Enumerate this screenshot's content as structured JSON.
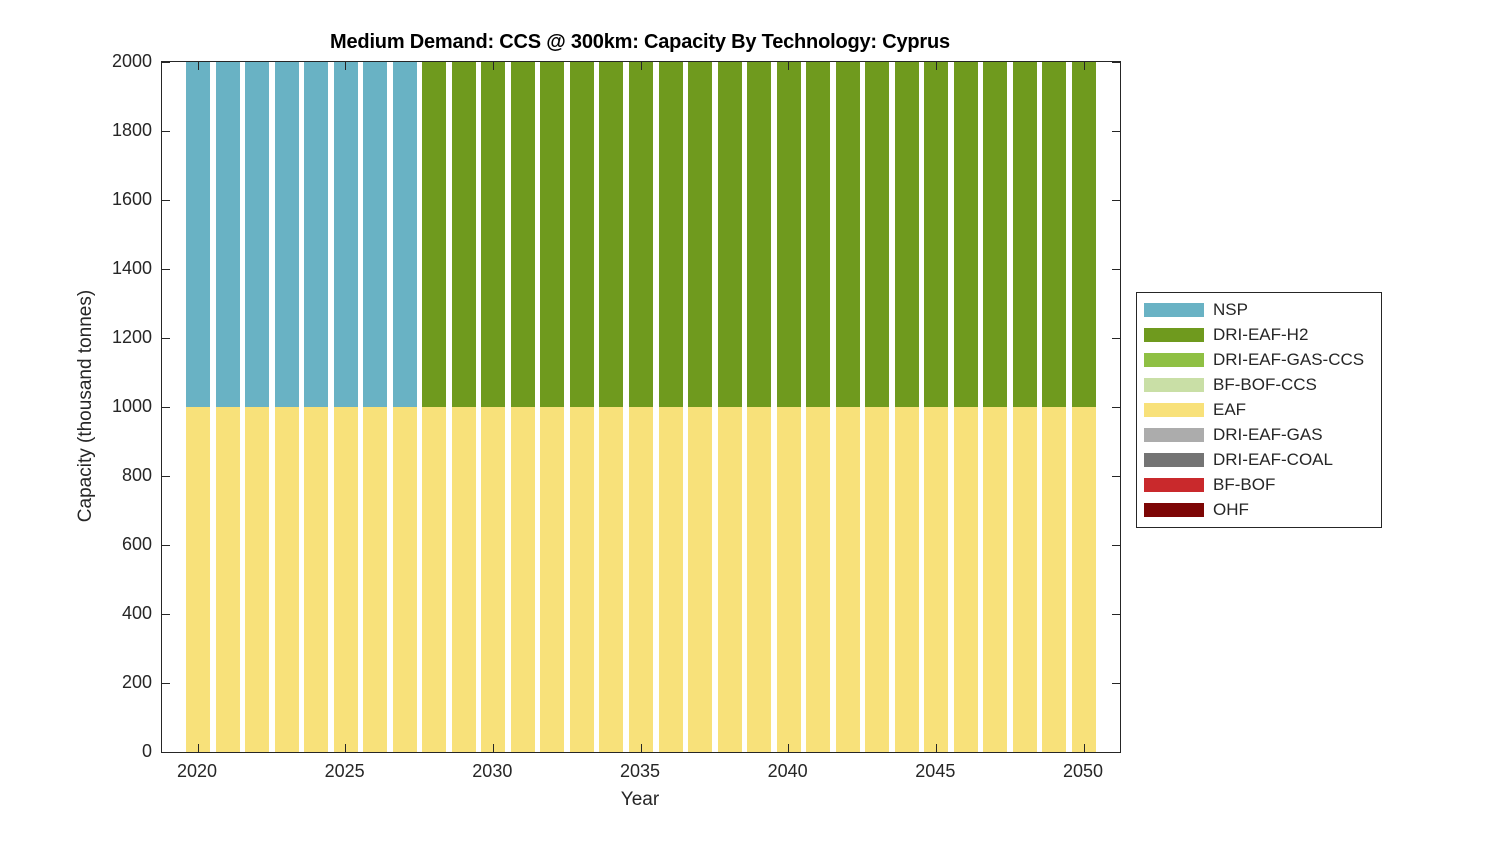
{
  "chart_data": {
    "type": "bar",
    "stacked": true,
    "title": "Medium Demand: CCS @ 300km: Capacity By Technology: Cyprus",
    "xlabel": "Year",
    "ylabel": "Capacity (thousand tonnes)",
    "ylim": [
      0,
      2000
    ],
    "yticks": [
      0,
      200,
      400,
      600,
      800,
      1000,
      1200,
      1400,
      1600,
      1800,
      2000
    ],
    "xticks": [
      2020,
      2025,
      2030,
      2035,
      2040,
      2045,
      2050
    ],
    "grid": false,
    "legend_position": "right-outside",
    "bar_width_fraction": 0.8,
    "x": [
      2020,
      2021,
      2022,
      2023,
      2024,
      2025,
      2026,
      2027,
      2028,
      2029,
      2030,
      2031,
      2032,
      2033,
      2034,
      2035,
      2036,
      2037,
      2038,
      2039,
      2040,
      2041,
      2042,
      2043,
      2044,
      2045,
      2046,
      2047,
      2048,
      2049,
      2050
    ],
    "stack_order": [
      "EAF",
      "NSP",
      "DRI-EAF-H2",
      "DRI-EAF-GAS-CCS",
      "BF-BOF-CCS",
      "DRI-EAF-GAS",
      "DRI-EAF-COAL",
      "BF-BOF",
      "OHF"
    ],
    "series": [
      {
        "name": "NSP",
        "color": "#69B2C4",
        "values": [
          1000,
          1000,
          1000,
          1000,
          1000,
          1000,
          1000,
          1000,
          0,
          0,
          0,
          0,
          0,
          0,
          0,
          0,
          0,
          0,
          0,
          0,
          0,
          0,
          0,
          0,
          0,
          0,
          0,
          0,
          0,
          0,
          0
        ]
      },
      {
        "name": "DRI-EAF-H2",
        "color": "#6F9A1E",
        "values": [
          0,
          0,
          0,
          0,
          0,
          0,
          0,
          0,
          1000,
          1000,
          1000,
          1000,
          1000,
          1000,
          1000,
          1000,
          1000,
          1000,
          1000,
          1000,
          1000,
          1000,
          1000,
          1000,
          1000,
          1000,
          1000,
          1000,
          1000,
          1000,
          1000
        ]
      },
      {
        "name": "DRI-EAF-GAS-CCS",
        "color": "#8FC044",
        "values": [
          0,
          0,
          0,
          0,
          0,
          0,
          0,
          0,
          0,
          0,
          0,
          0,
          0,
          0,
          0,
          0,
          0,
          0,
          0,
          0,
          0,
          0,
          0,
          0,
          0,
          0,
          0,
          0,
          0,
          0,
          0
        ]
      },
      {
        "name": "BF-BOF-CCS",
        "color": "#C9DFA6",
        "values": [
          0,
          0,
          0,
          0,
          0,
          0,
          0,
          0,
          0,
          0,
          0,
          0,
          0,
          0,
          0,
          0,
          0,
          0,
          0,
          0,
          0,
          0,
          0,
          0,
          0,
          0,
          0,
          0,
          0,
          0,
          0
        ]
      },
      {
        "name": "EAF",
        "color": "#F8E17A",
        "values": [
          1000,
          1000,
          1000,
          1000,
          1000,
          1000,
          1000,
          1000,
          1000,
          1000,
          1000,
          1000,
          1000,
          1000,
          1000,
          1000,
          1000,
          1000,
          1000,
          1000,
          1000,
          1000,
          1000,
          1000,
          1000,
          1000,
          1000,
          1000,
          1000,
          1000,
          1000
        ]
      },
      {
        "name": "DRI-EAF-GAS",
        "color": "#ACACAC",
        "values": [
          0,
          0,
          0,
          0,
          0,
          0,
          0,
          0,
          0,
          0,
          0,
          0,
          0,
          0,
          0,
          0,
          0,
          0,
          0,
          0,
          0,
          0,
          0,
          0,
          0,
          0,
          0,
          0,
          0,
          0,
          0
        ]
      },
      {
        "name": "DRI-EAF-COAL",
        "color": "#747474",
        "values": [
          0,
          0,
          0,
          0,
          0,
          0,
          0,
          0,
          0,
          0,
          0,
          0,
          0,
          0,
          0,
          0,
          0,
          0,
          0,
          0,
          0,
          0,
          0,
          0,
          0,
          0,
          0,
          0,
          0,
          0,
          0
        ]
      },
      {
        "name": "BF-BOF",
        "color": "#C9292C",
        "values": [
          0,
          0,
          0,
          0,
          0,
          0,
          0,
          0,
          0,
          0,
          0,
          0,
          0,
          0,
          0,
          0,
          0,
          0,
          0,
          0,
          0,
          0,
          0,
          0,
          0,
          0,
          0,
          0,
          0,
          0,
          0
        ]
      },
      {
        "name": "OHF",
        "color": "#7D0605",
        "values": [
          0,
          0,
          0,
          0,
          0,
          0,
          0,
          0,
          0,
          0,
          0,
          0,
          0,
          0,
          0,
          0,
          0,
          0,
          0,
          0,
          0,
          0,
          0,
          0,
          0,
          0,
          0,
          0,
          0,
          0,
          0
        ]
      }
    ],
    "colors": {
      "axis": "#262626",
      "tick_text": "#262626",
      "title_text": "#000000",
      "background": "#ffffff"
    }
  }
}
